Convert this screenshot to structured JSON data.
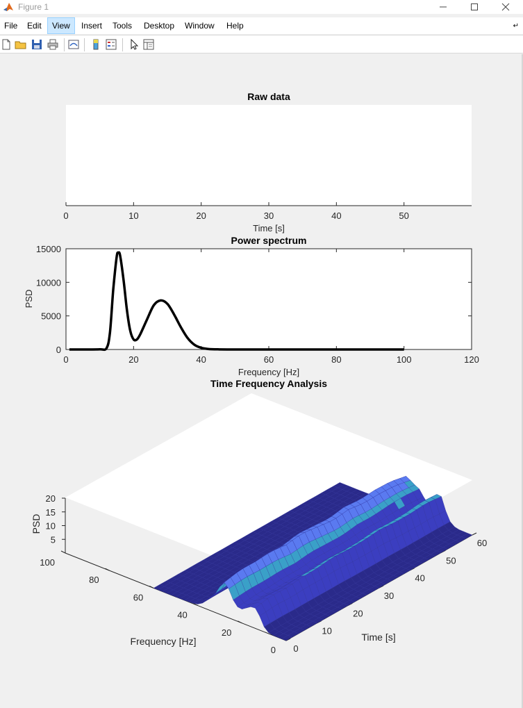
{
  "window": {
    "title": "Figure 1"
  },
  "menu": [
    "File",
    "Edit",
    "View",
    "Insert",
    "Tools",
    "Desktop",
    "Window",
    "Help"
  ],
  "menu_active": "View",
  "toolbar": [
    "new-figure-icon",
    "open-file-icon",
    "save-icon",
    "print-icon",
    "link-plot-icon",
    "colorbar-icon",
    "legend-icon",
    "pointer-icon",
    "property-inspector-icon"
  ],
  "colors": {
    "psd_line": "#000000",
    "surface_top": "#5a7af0",
    "surface_mid": "#3b3ec0",
    "surface_dark": "#2a2a8a",
    "surface_teal": "#3aa0c8"
  },
  "chart_data": [
    {
      "type": "line",
      "title": "Raw data",
      "xlabel": "Time [s]",
      "ylabel": "",
      "xlim": [
        0,
        60
      ],
      "xticks": [
        "0",
        "10",
        "20",
        "30",
        "40",
        "50"
      ],
      "series": []
    },
    {
      "type": "line",
      "title": "Power spectrum",
      "xlabel": "Frequency [Hz]",
      "ylabel": "PSD",
      "xlim": [
        0,
        120
      ],
      "ylim": [
        0,
        15000
      ],
      "xticks": [
        "0",
        "20",
        "40",
        "60",
        "80",
        "100",
        "120"
      ],
      "yticks": [
        "0",
        "5000",
        "10000",
        "15000"
      ],
      "series": [
        {
          "x": [
            1,
            5,
            10,
            12,
            13,
            14,
            15,
            15.5,
            16,
            17,
            18,
            19,
            20,
            21,
            22,
            24,
            26,
            28,
            30,
            32,
            34,
            36,
            38,
            40,
            42,
            45,
            50,
            60,
            80,
            100
          ],
          "y": [
            0,
            0,
            20,
            200,
            2500,
            9000,
            13800,
            14400,
            14000,
            10500,
            6000,
            2800,
            1500,
            1500,
            2300,
            4500,
            6600,
            7300,
            6800,
            5200,
            3300,
            1700,
            700,
            250,
            80,
            20,
            0,
            0,
            0,
            0
          ]
        }
      ]
    },
    {
      "type": "surface",
      "title": "Time Frequency Analysis",
      "xlabel": "Time [s]",
      "ylabel": "Frequency [Hz]",
      "zlabel": "PSD",
      "xlim": [
        0,
        60
      ],
      "ylim": [
        0,
        100
      ],
      "zlim": [
        0,
        20
      ],
      "xticks": [
        "0",
        "10",
        "20",
        "30",
        "40",
        "50",
        "60"
      ],
      "yticks": [
        "0",
        "20",
        "40",
        "60",
        "80",
        "100"
      ],
      "zticks": [
        "5",
        "10",
        "15",
        "20"
      ],
      "time": [
        0,
        5,
        10,
        15,
        20,
        25,
        30,
        35,
        40,
        45,
        50,
        55,
        60
      ],
      "ridges": [
        {
          "freq": 15,
          "psd": [
            8,
            9,
            8.5,
            9,
            9,
            9.5,
            9,
            9,
            9.5,
            9,
            9,
            9.5,
            9
          ]
        },
        {
          "freq": 28,
          "psd": [
            11,
            12,
            12,
            12.5,
            12,
            13,
            12.5,
            12,
            13,
            12.5,
            13,
            13,
            12
          ]
        }
      ]
    }
  ]
}
